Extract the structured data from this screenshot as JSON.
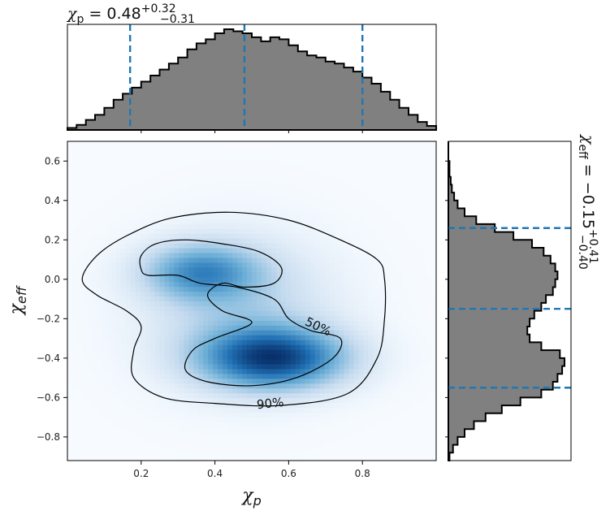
{
  "chart_data": {
    "type": "corner",
    "top_title": {
      "var": "χ",
      "sub": "p",
      "rest": " = 0.48",
      "sup": "+0.32",
      "low": "−0.31"
    },
    "right_title": {
      "var": "χ",
      "sub": "eff",
      "rest": " = −0.15",
      "sup": "+0.41",
      "low": "−0.40"
    },
    "xlabel": {
      "var": "χ",
      "sub": "p"
    },
    "ylabel": {
      "var": "χ",
      "sub": "eff"
    },
    "xlim": [
      0.0,
      1.0
    ],
    "ylim": [
      -0.92,
      0.7
    ],
    "xticks": [
      0.2,
      0.4,
      0.6,
      0.8
    ],
    "xtick_labels": [
      "0.2",
      "0.4",
      "0.6",
      "0.8"
    ],
    "yticks": [
      0.6,
      0.4,
      0.2,
      0.0,
      -0.2,
      -0.4,
      -0.6,
      -0.8
    ],
    "ytick_labels": [
      "0.6",
      "0.4",
      "0.2",
      "0.0",
      "−0.2",
      "−0.4",
      "−0.6",
      "−0.8"
    ],
    "colors": {
      "hist_fill": "#808080",
      "hist_edge": "#000000",
      "quantile": "#1f77b4",
      "density": "Blues"
    },
    "chi_p_quantiles": [
      0.17,
      0.48,
      0.8
    ],
    "chi_eff_quantiles": [
      -0.55,
      -0.15,
      0.26
    ],
    "chi_p_hist": {
      "edges": [
        0.0,
        0.025,
        0.05,
        0.075,
        0.1,
        0.125,
        0.15,
        0.175,
        0.2,
        0.225,
        0.25,
        0.275,
        0.3,
        0.325,
        0.35,
        0.375,
        0.4,
        0.425,
        0.45,
        0.475,
        0.5,
        0.525,
        0.55,
        0.575,
        0.6,
        0.625,
        0.65,
        0.675,
        0.7,
        0.725,
        0.75,
        0.775,
        0.8,
        0.825,
        0.85,
        0.875,
        0.9,
        0.925,
        0.95,
        0.975,
        1.0
      ],
      "counts": [
        0.02,
        0.05,
        0.1,
        0.15,
        0.22,
        0.3,
        0.36,
        0.42,
        0.48,
        0.54,
        0.6,
        0.66,
        0.72,
        0.8,
        0.86,
        0.9,
        0.96,
        1.0,
        0.98,
        0.96,
        0.92,
        0.88,
        0.92,
        0.9,
        0.84,
        0.78,
        0.74,
        0.72,
        0.68,
        0.66,
        0.62,
        0.58,
        0.52,
        0.46,
        0.38,
        0.3,
        0.22,
        0.15,
        0.08,
        0.04
      ]
    },
    "chi_eff_hist": {
      "edges": [
        -0.92,
        -0.88,
        -0.84,
        -0.8,
        -0.76,
        -0.72,
        -0.68,
        -0.64,
        -0.6,
        -0.56,
        -0.52,
        -0.48,
        -0.44,
        -0.4,
        -0.36,
        -0.32,
        -0.28,
        -0.24,
        -0.2,
        -0.16,
        -0.12,
        -0.08,
        -0.04,
        0.0,
        0.04,
        0.08,
        0.12,
        0.16,
        0.2,
        0.24,
        0.28,
        0.32,
        0.36,
        0.4,
        0.44,
        0.48,
        0.52,
        0.56,
        0.6,
        0.64,
        0.7
      ],
      "counts": [
        0.01,
        0.04,
        0.08,
        0.14,
        0.22,
        0.32,
        0.46,
        0.62,
        0.8,
        0.9,
        0.94,
        0.98,
        1.0,
        0.96,
        0.8,
        0.7,
        0.68,
        0.7,
        0.74,
        0.8,
        0.84,
        0.9,
        0.92,
        0.94,
        0.92,
        0.88,
        0.82,
        0.72,
        0.56,
        0.4,
        0.24,
        0.14,
        0.08,
        0.05,
        0.03,
        0.02,
        0.01,
        0.01,
        0.0,
        0.0
      ]
    },
    "density_modes": [
      {
        "x": 0.56,
        "y": -0.4,
        "sx": 0.14,
        "sy": 0.11,
        "w": 1.0
      },
      {
        "x": 0.36,
        "y": 0.04,
        "sx": 0.11,
        "sy": 0.1,
        "w": 0.62
      },
      {
        "x": 0.47,
        "y": -0.15,
        "sx": 0.18,
        "sy": 0.26,
        "w": 0.32
      }
    ],
    "contours": [
      {
        "label": "50%",
        "label_at": [
          0.68,
          -0.24
        ],
        "points": [
          [
            0.2,
            0.05
          ],
          [
            0.2,
            0.12
          ],
          [
            0.24,
            0.18
          ],
          [
            0.32,
            0.2
          ],
          [
            0.42,
            0.18
          ],
          [
            0.52,
            0.14
          ],
          [
            0.58,
            0.06
          ],
          [
            0.56,
            -0.02
          ],
          [
            0.48,
            -0.04
          ],
          [
            0.42,
            -0.02
          ],
          [
            0.38,
            -0.08
          ],
          [
            0.42,
            -0.16
          ],
          [
            0.5,
            -0.22
          ],
          [
            0.4,
            -0.3
          ],
          [
            0.34,
            -0.36
          ],
          [
            0.32,
            -0.46
          ],
          [
            0.38,
            -0.52
          ],
          [
            0.5,
            -0.54
          ],
          [
            0.62,
            -0.5
          ],
          [
            0.72,
            -0.4
          ],
          [
            0.74,
            -0.3
          ],
          [
            0.66,
            -0.26
          ],
          [
            0.6,
            -0.2
          ],
          [
            0.56,
            -0.1
          ],
          [
            0.46,
            -0.04
          ],
          [
            0.36,
            -0.02
          ],
          [
            0.3,
            0.02
          ],
          [
            0.22,
            0.02
          ]
        ]
      },
      {
        "label": "90%",
        "label_at": [
          0.55,
          -0.63
        ],
        "points": [
          [
            0.04,
            0.0
          ],
          [
            0.08,
            0.12
          ],
          [
            0.16,
            0.22
          ],
          [
            0.28,
            0.31
          ],
          [
            0.44,
            0.34
          ],
          [
            0.6,
            0.3
          ],
          [
            0.74,
            0.2
          ],
          [
            0.84,
            0.1
          ],
          [
            0.86,
            0.0
          ],
          [
            0.86,
            -0.2
          ],
          [
            0.84,
            -0.4
          ],
          [
            0.76,
            -0.58
          ],
          [
            0.58,
            -0.64
          ],
          [
            0.4,
            -0.63
          ],
          [
            0.26,
            -0.6
          ],
          [
            0.18,
            -0.5
          ],
          [
            0.18,
            -0.36
          ],
          [
            0.2,
            -0.24
          ],
          [
            0.16,
            -0.16
          ],
          [
            0.08,
            -0.08
          ]
        ]
      }
    ]
  }
}
